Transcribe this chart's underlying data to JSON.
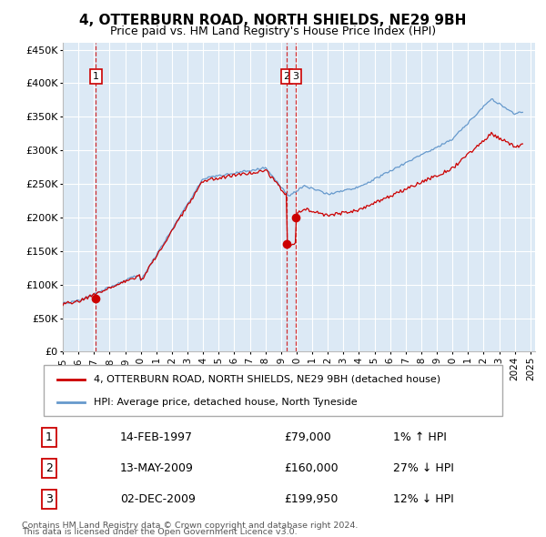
{
  "title": "4, OTTERBURN ROAD, NORTH SHIELDS, NE29 9BH",
  "subtitle": "Price paid vs. HM Land Registry's House Price Index (HPI)",
  "ylim": [
    0,
    460000
  ],
  "yticks": [
    0,
    50000,
    100000,
    150000,
    200000,
    250000,
    300000,
    350000,
    400000,
    450000
  ],
  "xlim_start": 1995.0,
  "xlim_end": 2025.3,
  "plot_bg_color": "#dce9f5",
  "red_line_color": "#cc0000",
  "blue_line_color": "#6699cc",
  "sale_marker_color": "#cc0000",
  "dashed_line_color": "#cc0000",
  "legend_label_red": "4, OTTERBURN ROAD, NORTH SHIELDS, NE29 9BH (detached house)",
  "legend_label_blue": "HPI: Average price, detached house, North Tyneside",
  "transactions": [
    {
      "num": 1,
      "date_x": 1997.12,
      "price": 79000,
      "label": "1",
      "pct": "1%",
      "dir": "↑",
      "date_str": "14-FEB-1997"
    },
    {
      "num": 2,
      "date_x": 2009.37,
      "price": 160000,
      "label": "2",
      "pct": "27%",
      "dir": "↓",
      "date_str": "13-MAY-2009"
    },
    {
      "num": 3,
      "date_x": 2009.92,
      "price": 199950,
      "label": "3",
      "pct": "12%",
      "dir": "↓",
      "date_str": "02-DEC-2009"
    }
  ],
  "footer1": "Contains HM Land Registry data © Crown copyright and database right 2024.",
  "footer2": "This data is licensed under the Open Government Licence v3.0."
}
